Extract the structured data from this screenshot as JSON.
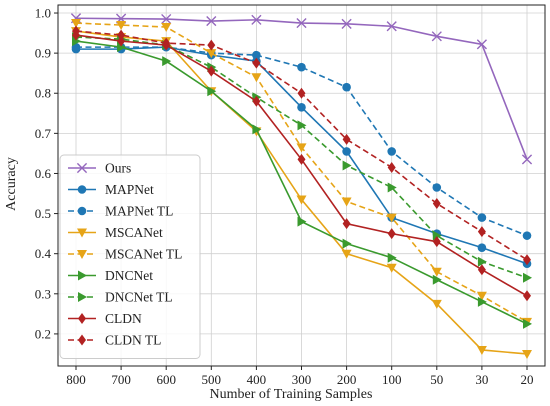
{
  "chart_data": {
    "type": "line",
    "title": "",
    "xlabel": "Number of Training Samples",
    "ylabel": "Accuracy",
    "categories": [
      "800",
      "700",
      "600",
      "500",
      "400",
      "300",
      "200",
      "100",
      "50",
      "30",
      "20"
    ],
    "ylim": [
      0.12,
      1.02
    ],
    "yticks": [
      "0.2",
      "0.3",
      "0.4",
      "0.5",
      "0.6",
      "0.7",
      "0.8",
      "0.9",
      "1.0"
    ],
    "grid": true,
    "legend_position": "lower-left",
    "series": [
      {
        "name": "Ours",
        "color": "#9467bd",
        "dash": "solid",
        "marker": "x",
        "values": [
          0.987,
          0.986,
          0.985,
          0.98,
          0.983,
          0.975,
          0.973,
          0.967,
          0.942,
          0.922,
          0.635
        ]
      },
      {
        "name": "MAPNet",
        "color": "#1f77b4",
        "dash": "solid",
        "marker": "circle",
        "values": [
          0.91,
          0.91,
          0.915,
          0.895,
          0.88,
          0.765,
          0.655,
          0.49,
          0.45,
          0.415,
          0.375
        ]
      },
      {
        "name": "MAPNet TL",
        "color": "#1f77b4",
        "dash": "dashed",
        "marker": "circle",
        "values": [
          0.915,
          0.915,
          0.915,
          0.9,
          0.895,
          0.865,
          0.815,
          0.655,
          0.565,
          0.49,
          0.445
        ]
      },
      {
        "name": "MSCANet",
        "color": "#e6a417",
        "dash": "solid",
        "marker": "triangle-down",
        "values": [
          0.955,
          0.94,
          0.93,
          0.805,
          0.705,
          0.535,
          0.4,
          0.365,
          0.275,
          0.16,
          0.15
        ]
      },
      {
        "name": "MSCANet TL",
        "color": "#e6a417",
        "dash": "dashed",
        "marker": "triangle-down",
        "values": [
          0.975,
          0.97,
          0.965,
          0.9,
          0.84,
          0.665,
          0.53,
          0.49,
          0.355,
          0.295,
          0.23
        ]
      },
      {
        "name": "DNCNet",
        "color": "#3a9a2e",
        "dash": "solid",
        "marker": "triangle-right",
        "values": [
          0.93,
          0.915,
          0.88,
          0.805,
          0.71,
          0.48,
          0.425,
          0.39,
          0.335,
          0.28,
          0.225
        ]
      },
      {
        "name": "DNCNet TL",
        "color": "#3a9a2e",
        "dash": "dashed",
        "marker": "triangle-right",
        "values": [
          0.94,
          0.935,
          0.92,
          0.865,
          0.79,
          0.72,
          0.62,
          0.565,
          0.445,
          0.38,
          0.34
        ]
      },
      {
        "name": "CLDN",
        "color": "#b22222",
        "dash": "solid",
        "marker": "diamond",
        "values": [
          0.945,
          0.93,
          0.92,
          0.855,
          0.78,
          0.635,
          0.475,
          0.45,
          0.43,
          0.36,
          0.295
        ]
      },
      {
        "name": "CLDN TL",
        "color": "#b22222",
        "dash": "dashed",
        "marker": "diamond",
        "values": [
          0.955,
          0.945,
          0.925,
          0.92,
          0.875,
          0.8,
          0.685,
          0.615,
          0.525,
          0.455,
          0.385
        ]
      }
    ]
  }
}
